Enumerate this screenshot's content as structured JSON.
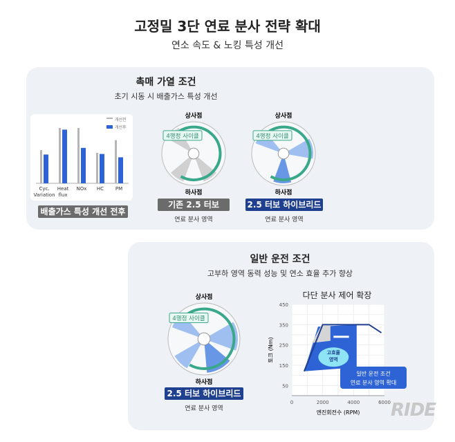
{
  "title": "고정밀 3단 연료 분사 전략 확대",
  "subtitle": "연소 속도 & 노킹 특성 개선",
  "panel1": {
    "title": "촉매 가열 조건",
    "subtitle": "초기 시동 시 배출가스 특성 개선",
    "chart_label": "배출가스 특성 개선 전후",
    "circle1": {
      "top": "상사점",
      "bottom": "하사점",
      "cycle": "4행정 사이클",
      "label": "기존 2.5 터보",
      "caption": "연료 분사 영역"
    },
    "circle2": {
      "top": "상사점",
      "bottom": "하사점",
      "cycle": "4행정 사이클",
      "label": "2.5 터보 하이브리드",
      "caption": "연료 분사 영역"
    }
  },
  "panel2": {
    "title": "일반 운전 조건",
    "subtitle": "고부하 영역 동력 성능 및 연소 효율 추가 향상",
    "circle": {
      "top": "상사점",
      "bottom": "하사점",
      "cycle": "4행정 사이클",
      "label": "2.5 터보 하이브리드",
      "caption": "연료 분사 영역"
    },
    "chart_title": "다단 분사 제어 확장",
    "zone_label": "고효율 영역",
    "callout_line1": "일반 운전 조건",
    "callout_line2": "연료 분사 영역 확대"
  },
  "watermark": "RIDE MAGAZINE",
  "colors": {
    "gray": "#a9a9a9",
    "blue": "#2e63d6",
    "navy": "#1f3f8f",
    "teal": "#3aa88a"
  },
  "chart_data": [
    {
      "type": "bar",
      "categories": [
        "Cyc. Variation",
        "Heat flux",
        "NOx",
        "HC",
        "PM"
      ],
      "series": [
        {
          "name": "개선전",
          "values": [
            0.6,
            1.0,
            1.0,
            0.55,
            0.78
          ]
        },
        {
          "name": "개선후",
          "values": [
            0.52,
            0.97,
            0.64,
            0.53,
            0.47
          ]
        }
      ],
      "ylim": [
        0,
        1
      ],
      "legend": "top-right"
    },
    {
      "type": "line",
      "title": "다단 분사 제어 확장",
      "xlabel": "엔진회전수 (RPM)",
      "ylabel": "토크 (Nm)",
      "xlim": [
        0,
        6000
      ],
      "ylim": [
        0,
        450
      ],
      "xticks": [
        "0",
        "2000",
        "4000",
        "6000"
      ],
      "yticks": [
        "50",
        "150",
        "250",
        "350",
        "450"
      ],
      "x": [
        800,
        2000,
        5000,
        5800
      ],
      "y": [
        120,
        350,
        350,
        310
      ]
    }
  ]
}
